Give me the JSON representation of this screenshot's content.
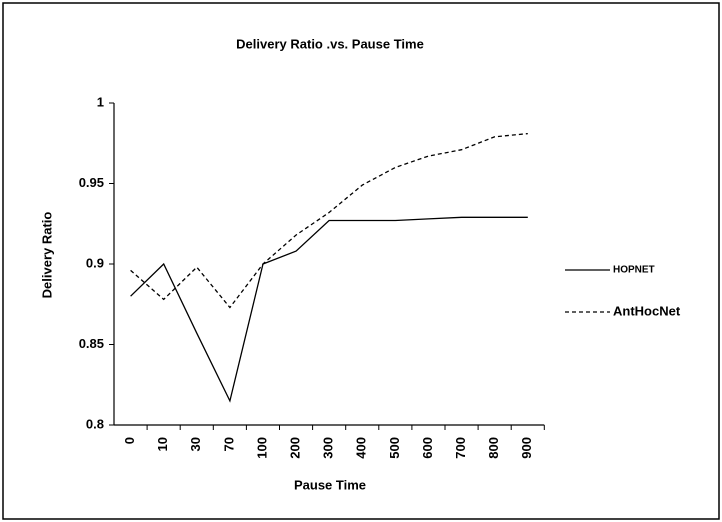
{
  "chart_data": {
    "type": "line",
    "title": "Delivery Ratio .vs. Pause Time",
    "x_label": "Pause Time",
    "y_label": "Delivery Ratio",
    "categories": [
      "0",
      "10",
      "30",
      "70",
      "100",
      "200",
      "300",
      "400",
      "500",
      "600",
      "700",
      "800",
      "900"
    ],
    "series": [
      {
        "name": "HOPNET",
        "color": "#000000",
        "style": "solid",
        "values": [
          0.88,
          0.9,
          0.857,
          0.815,
          0.9,
          0.908,
          0.927,
          0.927,
          0.927,
          0.928,
          0.929,
          0.929,
          0.929
        ]
      },
      {
        "name": "AntHocNet",
        "color": "#000000",
        "style": "dashed",
        "values": [
          0.896,
          0.878,
          0.898,
          0.873,
          0.9,
          0.918,
          0.932,
          0.949,
          0.96,
          0.967,
          0.971,
          0.979,
          0.981
        ]
      }
    ],
    "ylim": [
      0.8,
      1
    ],
    "yticks": [
      0.8,
      0.85,
      0.9,
      0.95,
      1
    ],
    "grid": false,
    "legend": "right"
  }
}
